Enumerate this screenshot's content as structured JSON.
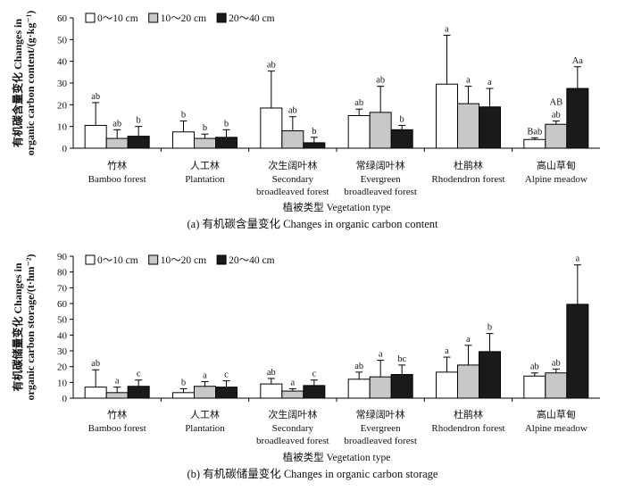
{
  "colors": {
    "depth_0_10": "#ffffff",
    "depth_10_20": "#c8c8c8",
    "depth_20_40": "#1a1a1a",
    "axis": "#000000"
  },
  "chart_data": [
    {
      "type": "bar",
      "caption": "(a) 有机碳含量变化 Changes in organic carbon content",
      "ylabel": [
        "有机碳含量变化 Changes in",
        "organic carbon content/(g·kg⁻¹)"
      ],
      "xlabel": "植被类型 Vegetation type",
      "ylim": [
        0,
        60
      ],
      "yticks": [
        0,
        10,
        20,
        30,
        40,
        50,
        60
      ],
      "categories": [
        {
          "zh": "竹林",
          "en": [
            "Bamboo forest"
          ]
        },
        {
          "zh": "人工林",
          "en": [
            "Plantation"
          ]
        },
        {
          "zh": "次生阔叶林",
          "en": [
            "Secondary",
            "broadleaved forest"
          ]
        },
        {
          "zh": "常绿阔叶林",
          "en": [
            "Evergreen",
            "broadleaved forest"
          ]
        },
        {
          "zh": "杜鹃林",
          "en": [
            "Rhodendron forest"
          ]
        },
        {
          "zh": "高山草甸",
          "en": [
            "Alpine meadow"
          ]
        }
      ],
      "series": [
        {
          "name": "0～10 cm",
          "values": [
            10.5,
            7.5,
            18.5,
            15.0,
            29.5,
            4.0
          ],
          "errors": [
            10.5,
            5.0,
            17.0,
            3.0,
            22.5,
            0.8
          ],
          "labels": [
            "ab",
            "b",
            "ab",
            "ab",
            "a",
            "Bab"
          ]
        },
        {
          "name": "10～20 cm",
          "values": [
            4.5,
            4.5,
            8.0,
            16.5,
            20.5,
            11.0
          ],
          "errors": [
            4.0,
            2.0,
            6.5,
            12.0,
            8.0,
            1.5
          ],
          "labels": [
            "ab",
            "b",
            "ab",
            "ab",
            "a",
            "AB ab"
          ]
        },
        {
          "name": "20～40 cm",
          "values": [
            5.5,
            5.0,
            2.5,
            8.5,
            19.0,
            27.5
          ],
          "errors": [
            4.5,
            3.5,
            2.5,
            2.0,
            8.5,
            10.0
          ],
          "labels": [
            "b",
            "b",
            "b",
            "b",
            "a",
            "Aa"
          ]
        }
      ]
    },
    {
      "type": "bar",
      "caption": "(b) 有机碳储量变化 Changes in organic carbon storage",
      "ylabel": [
        "有机碳储量变化 Changes in",
        "organic carbon storage/(t·hm⁻²)"
      ],
      "xlabel": "植被类型 Vegetation type",
      "ylim": [
        0,
        90
      ],
      "yticks": [
        0,
        10,
        20,
        30,
        40,
        50,
        60,
        70,
        80,
        90
      ],
      "categories": [
        {
          "zh": "竹林",
          "en": [
            "Bamboo forest"
          ]
        },
        {
          "zh": "人工林",
          "en": [
            "Plantation"
          ]
        },
        {
          "zh": "次生阔叶林",
          "en": [
            "Secondary",
            "broadleaved forest"
          ]
        },
        {
          "zh": "常绿阔叶林",
          "en": [
            "Evergreen",
            "broadleaved forest"
          ]
        },
        {
          "zh": "杜鹃林",
          "en": [
            "Rhodendron forest"
          ]
        },
        {
          "zh": "高山草甸",
          "en": [
            "Alpine meadow"
          ]
        }
      ],
      "series": [
        {
          "name": "0～10 cm",
          "values": [
            7.0,
            3.5,
            9.0,
            12.0,
            16.5,
            14.0
          ],
          "errors": [
            11.0,
            2.5,
            3.5,
            4.5,
            9.5,
            2.0
          ],
          "labels": [
            "ab",
            "b",
            "ab",
            "ab",
            "a",
            "ab"
          ]
        },
        {
          "name": "10～20 cm",
          "values": [
            3.5,
            7.5,
            4.5,
            13.5,
            21.0,
            16.0
          ],
          "errors": [
            3.5,
            3.0,
            1.5,
            10.5,
            12.5,
            2.5
          ],
          "labels": [
            "a",
            "a",
            "a",
            "a",
            "a",
            "ab"
          ]
        },
        {
          "name": "20～40 cm",
          "values": [
            7.5,
            7.0,
            8.0,
            15.0,
            29.5,
            59.5
          ],
          "errors": [
            4.0,
            4.0,
            3.5,
            6.0,
            11.5,
            25.0
          ],
          "labels": [
            "c",
            "c",
            "c",
            "bc",
            "b",
            "a"
          ]
        }
      ]
    }
  ]
}
